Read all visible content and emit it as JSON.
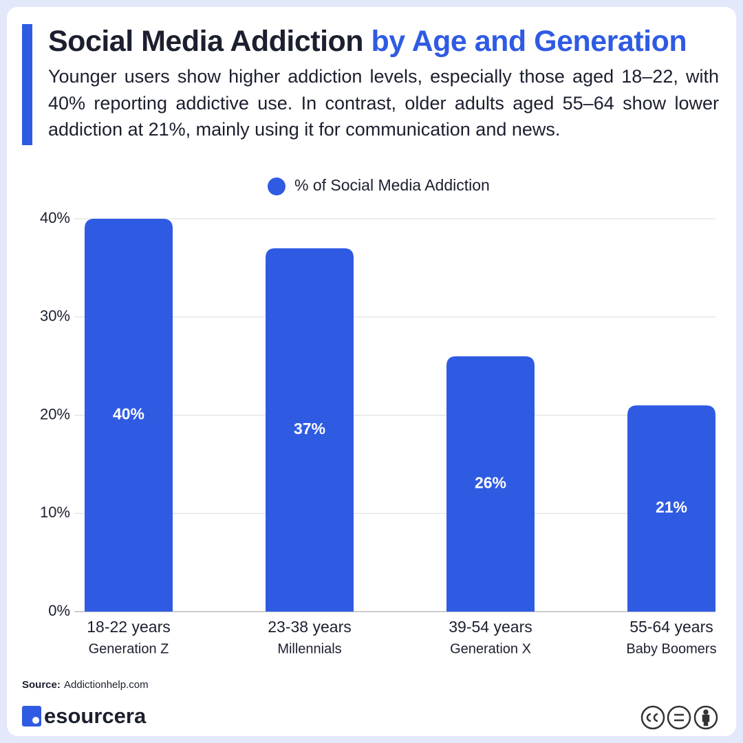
{
  "header": {
    "title": "Social Media Addiction",
    "title_highlight": "by Age and Generation",
    "subtitle": "Younger users show higher addiction levels, especially those aged 18–22, with 40% reporting addictive use. In contrast, older adults aged 55–64 show lower addiction at 21%, mainly using it for communication and news."
  },
  "chart_data": {
    "type": "bar",
    "categories": [
      "18-22 years",
      "23-38 years",
      "39-54 years",
      "55-64 years"
    ],
    "category_sublabels": [
      "Generation Z",
      "Millennials",
      "Generation X",
      "Baby Boomers"
    ],
    "series": [
      {
        "name": "% of Social Media Addiction",
        "color": "#2f5be3",
        "values": [
          40,
          37,
          26,
          21
        ],
        "value_labels": [
          "40%",
          "37%",
          "26%",
          "21%"
        ]
      }
    ],
    "ylim": [
      0,
      40
    ],
    "yticks": [
      {
        "value": 0,
        "label": "0%"
      },
      {
        "value": 10,
        "label": "10%"
      },
      {
        "value": 20,
        "label": "20%"
      },
      {
        "value": 30,
        "label": "30%"
      },
      {
        "value": 40,
        "label": "40%"
      }
    ],
    "grid": true,
    "legend": "top"
  },
  "footer": {
    "source_label": "Source:",
    "source": "Addictionhelp.com",
    "brand": "esourcera"
  }
}
